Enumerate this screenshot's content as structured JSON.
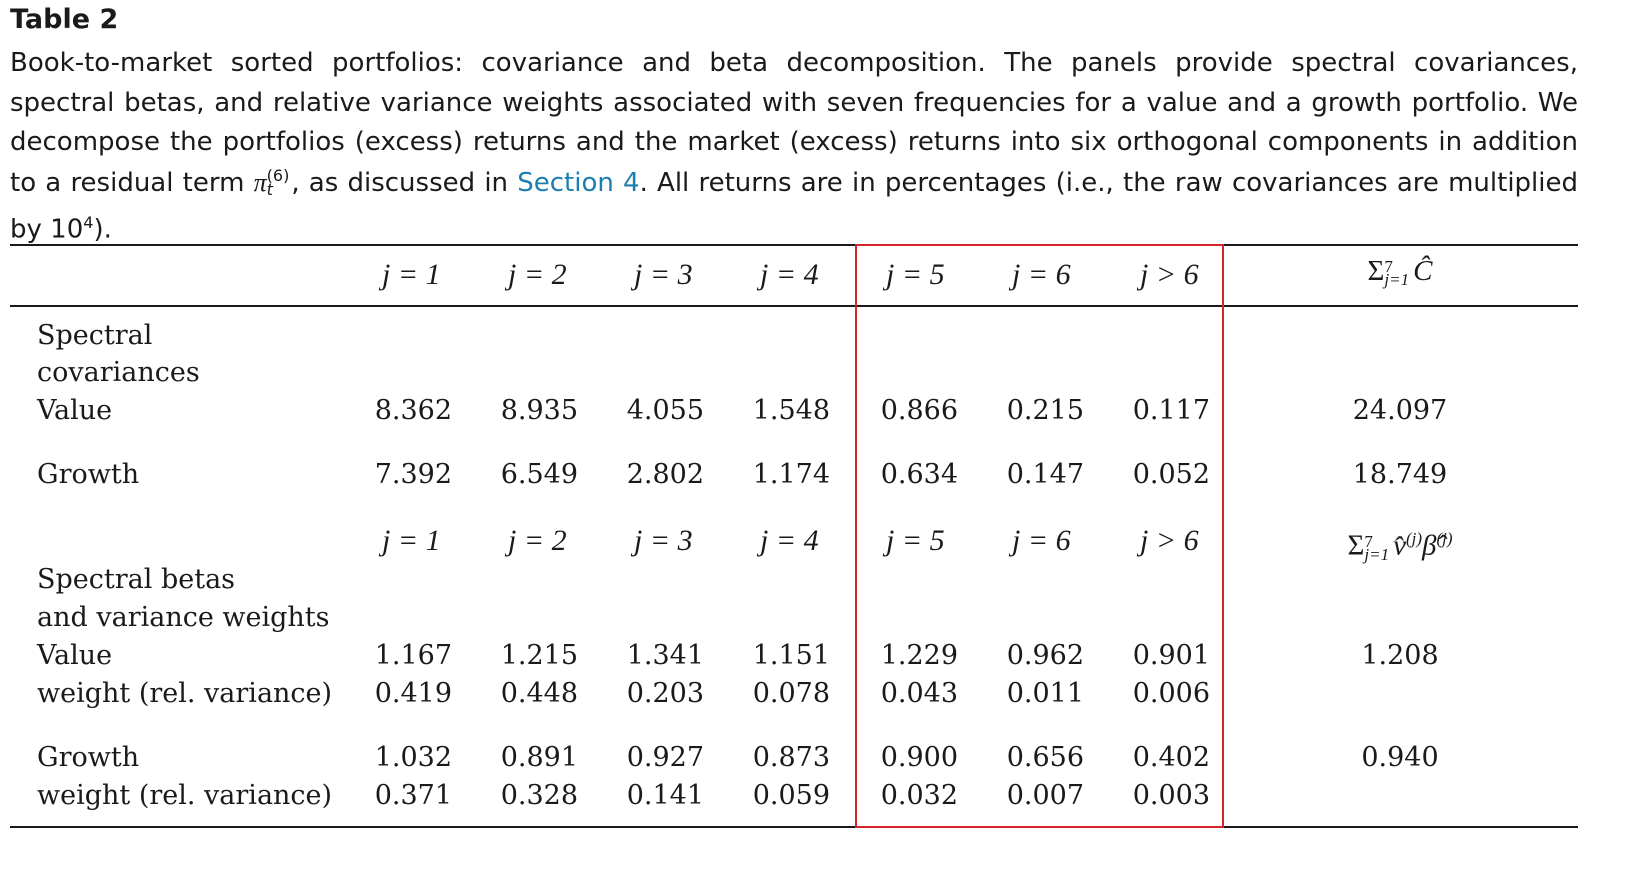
{
  "title": "Table 2",
  "caption": {
    "part1": "Book-to-market sorted portfolios: covariance and beta decomposition. The panels provide spectral covariances, spectral betas, and relative variance weights associated with seven frequencies for a value and a growth portfolio. We decompose the portfolios (excess) returns and the market (excess) returns into six orthogonal components in addition to a residual term ",
    "pi": "π",
    "pi_sup": "(6)",
    "pi_sub": "t",
    "part2": ", as discussed in ",
    "link": "Section 4",
    "part3": ". All returns are in percentages (i.e., the raw covariances are multiplied by 10",
    "exp": "4",
    "part4": ")."
  },
  "headers": [
    "j = 1",
    "j = 2",
    "j = 3",
    "j = 4",
    "j = 5",
    "j = 6",
    "j > 6"
  ],
  "sum_header_1": {
    "sigma": "Σ",
    "sub": "j=1",
    "sup": "7",
    "term": "Ĉ"
  },
  "sum_header_2": {
    "sigma": "Σ",
    "sub": "j=1",
    "sup": "7",
    "term": "v̂",
    "sup2": "(j)",
    "term2": "β̂",
    "sup3": "(j)"
  },
  "panel1": {
    "label_line1": "Spectral",
    "label_line2": "covariances",
    "rows": [
      {
        "label": "Value",
        "values": [
          "8.362",
          "8.935",
          "4.055",
          "1.548",
          "0.866",
          "0.215",
          "0.117"
        ],
        "sum": "24.097"
      },
      {
        "label": "Growth",
        "values": [
          "7.392",
          "6.549",
          "2.802",
          "1.174",
          "0.634",
          "0.147",
          "0.052"
        ],
        "sum": "18.749"
      }
    ]
  },
  "panel2": {
    "label_line1": "Spectral betas",
    "label_line2": "and variance weights",
    "rows": [
      {
        "label": "Value",
        "values": [
          "1.167",
          "1.215",
          "1.341",
          "1.151",
          "1.229",
          "0.962",
          "0.901"
        ],
        "sum": "1.208"
      },
      {
        "label": "weight (rel. variance)",
        "values": [
          "0.419",
          "0.448",
          "0.203",
          "0.078",
          "0.043",
          "0.011",
          "0.006"
        ],
        "sum": ""
      },
      {
        "label": "Growth",
        "values": [
          "1.032",
          "0.891",
          "0.927",
          "0.873",
          "0.900",
          "0.656",
          "0.402"
        ],
        "sum": "0.940"
      },
      {
        "label": "weight (rel. variance)",
        "values": [
          "0.371",
          "0.328",
          "0.141",
          "0.059",
          "0.032",
          "0.007",
          "0.003"
        ],
        "sum": ""
      }
    ]
  },
  "colors": {
    "highlight_box": "#d6262c",
    "link": "#1a7fb0"
  }
}
